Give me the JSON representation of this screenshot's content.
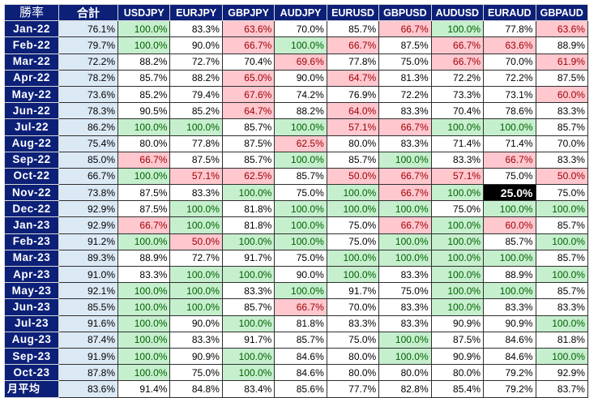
{
  "table": {
    "corner_label": "勝率",
    "total_label": "合計",
    "pairs": [
      "USDJPY",
      "EURJPY",
      "GBPJPY",
      "AUDJPY",
      "EURUSD",
      "GBPUSD",
      "AUDUSD",
      "EURAUD",
      "GBPAUD"
    ],
    "rows": [
      {
        "month": "Jan-22",
        "total": "76.1%",
        "values": [
          {
            "v": "100.0%",
            "s": "hi"
          },
          {
            "v": "83.3%",
            "s": ""
          },
          {
            "v": "63.6%",
            "s": "lo"
          },
          {
            "v": "70.0%",
            "s": ""
          },
          {
            "v": "85.7%",
            "s": ""
          },
          {
            "v": "66.7%",
            "s": "lo"
          },
          {
            "v": "100.0%",
            "s": "hi"
          },
          {
            "v": "77.8%",
            "s": ""
          },
          {
            "v": "63.6%",
            "s": "lo"
          }
        ]
      },
      {
        "month": "Feb-22",
        "total": "79.7%",
        "values": [
          {
            "v": "100.0%",
            "s": "hi"
          },
          {
            "v": "90.0%",
            "s": ""
          },
          {
            "v": "66.7%",
            "s": "lo"
          },
          {
            "v": "100.0%",
            "s": "hi"
          },
          {
            "v": "66.7%",
            "s": "lo"
          },
          {
            "v": "87.5%",
            "s": ""
          },
          {
            "v": "66.7%",
            "s": "lo"
          },
          {
            "v": "63.6%",
            "s": "lo"
          },
          {
            "v": "88.9%",
            "s": ""
          }
        ]
      },
      {
        "month": "Mar-22",
        "total": "72.2%",
        "values": [
          {
            "v": "88.2%",
            "s": ""
          },
          {
            "v": "72.7%",
            "s": ""
          },
          {
            "v": "70.4%",
            "s": ""
          },
          {
            "v": "69.6%",
            "s": "lo"
          },
          {
            "v": "77.8%",
            "s": ""
          },
          {
            "v": "75.0%",
            "s": ""
          },
          {
            "v": "66.7%",
            "s": "lo"
          },
          {
            "v": "70.0%",
            "s": ""
          },
          {
            "v": "61.9%",
            "s": "lo"
          }
        ]
      },
      {
        "month": "Apr-22",
        "total": "78.2%",
        "values": [
          {
            "v": "85.7%",
            "s": ""
          },
          {
            "v": "88.2%",
            "s": ""
          },
          {
            "v": "65.0%",
            "s": "lo"
          },
          {
            "v": "90.0%",
            "s": ""
          },
          {
            "v": "64.7%",
            "s": "lo"
          },
          {
            "v": "81.3%",
            "s": ""
          },
          {
            "v": "72.2%",
            "s": ""
          },
          {
            "v": "72.2%",
            "s": ""
          },
          {
            "v": "87.5%",
            "s": ""
          }
        ]
      },
      {
        "month": "May-22",
        "total": "73.6%",
        "values": [
          {
            "v": "85.2%",
            "s": ""
          },
          {
            "v": "79.4%",
            "s": ""
          },
          {
            "v": "67.6%",
            "s": "lo"
          },
          {
            "v": "74.2%",
            "s": ""
          },
          {
            "v": "76.9%",
            "s": ""
          },
          {
            "v": "72.2%",
            "s": ""
          },
          {
            "v": "73.3%",
            "s": ""
          },
          {
            "v": "73.1%",
            "s": ""
          },
          {
            "v": "60.0%",
            "s": "lo"
          }
        ]
      },
      {
        "month": "Jun-22",
        "total": "78.3%",
        "values": [
          {
            "v": "90.5%",
            "s": ""
          },
          {
            "v": "85.2%",
            "s": ""
          },
          {
            "v": "64.7%",
            "s": "lo"
          },
          {
            "v": "88.2%",
            "s": ""
          },
          {
            "v": "64.0%",
            "s": "lo"
          },
          {
            "v": "83.3%",
            "s": ""
          },
          {
            "v": "70.4%",
            "s": ""
          },
          {
            "v": "78.6%",
            "s": ""
          },
          {
            "v": "83.3%",
            "s": ""
          }
        ]
      },
      {
        "month": "Jul-22",
        "total": "86.2%",
        "values": [
          {
            "v": "100.0%",
            "s": "hi"
          },
          {
            "v": "100.0%",
            "s": "hi"
          },
          {
            "v": "85.7%",
            "s": ""
          },
          {
            "v": "100.0%",
            "s": "hi"
          },
          {
            "v": "57.1%",
            "s": "lo"
          },
          {
            "v": "66.7%",
            "s": "lo"
          },
          {
            "v": "100.0%",
            "s": "hi"
          },
          {
            "v": "100.0%",
            "s": "hi"
          },
          {
            "v": "85.7%",
            "s": ""
          }
        ]
      },
      {
        "month": "Aug-22",
        "total": "75.4%",
        "values": [
          {
            "v": "80.0%",
            "s": ""
          },
          {
            "v": "77.8%",
            "s": ""
          },
          {
            "v": "87.5%",
            "s": ""
          },
          {
            "v": "62.5%",
            "s": "lo"
          },
          {
            "v": "80.0%",
            "s": ""
          },
          {
            "v": "83.3%",
            "s": ""
          },
          {
            "v": "71.4%",
            "s": ""
          },
          {
            "v": "71.4%",
            "s": ""
          },
          {
            "v": "70.0%",
            "s": ""
          }
        ]
      },
      {
        "month": "Sep-22",
        "total": "85.0%",
        "values": [
          {
            "v": "66.7%",
            "s": "lo"
          },
          {
            "v": "87.5%",
            "s": ""
          },
          {
            "v": "85.7%",
            "s": ""
          },
          {
            "v": "100.0%",
            "s": "hi"
          },
          {
            "v": "85.7%",
            "s": ""
          },
          {
            "v": "100.0%",
            "s": "hi"
          },
          {
            "v": "83.3%",
            "s": ""
          },
          {
            "v": "66.7%",
            "s": "lo"
          },
          {
            "v": "83.3%",
            "s": ""
          }
        ]
      },
      {
        "month": "Oct-22",
        "total": "66.7%",
        "values": [
          {
            "v": "100.0%",
            "s": "hi"
          },
          {
            "v": "57.1%",
            "s": "lo"
          },
          {
            "v": "62.5%",
            "s": "lo"
          },
          {
            "v": "85.7%",
            "s": ""
          },
          {
            "v": "50.0%",
            "s": "lo"
          },
          {
            "v": "66.7%",
            "s": "lo"
          },
          {
            "v": "57.1%",
            "s": "lo"
          },
          {
            "v": "75.0%",
            "s": ""
          },
          {
            "v": "50.0%",
            "s": "lo"
          }
        ]
      },
      {
        "month": "Nov-22",
        "total": "73.8%",
        "values": [
          {
            "v": "87.5%",
            "s": ""
          },
          {
            "v": "83.3%",
            "s": ""
          },
          {
            "v": "100.0%",
            "s": "hi"
          },
          {
            "v": "75.0%",
            "s": ""
          },
          {
            "v": "100.0%",
            "s": "hi"
          },
          {
            "v": "66.7%",
            "s": "lo"
          },
          {
            "v": "100.0%",
            "s": "hi"
          },
          {
            "v": "25.0%",
            "s": "min"
          },
          {
            "v": "75.0%",
            "s": ""
          }
        ]
      },
      {
        "month": "Dec-22",
        "total": "92.9%",
        "values": [
          {
            "v": "87.5%",
            "s": ""
          },
          {
            "v": "100.0%",
            "s": "hi"
          },
          {
            "v": "81.8%",
            "s": ""
          },
          {
            "v": "100.0%",
            "s": "hi"
          },
          {
            "v": "100.0%",
            "s": "hi"
          },
          {
            "v": "100.0%",
            "s": "hi"
          },
          {
            "v": "75.0%",
            "s": ""
          },
          {
            "v": "100.0%",
            "s": "hi"
          },
          {
            "v": "100.0%",
            "s": "hi"
          }
        ]
      },
      {
        "month": "Jan-23",
        "total": "92.9%",
        "values": [
          {
            "v": "66.7%",
            "s": "lo"
          },
          {
            "v": "100.0%",
            "s": "hi"
          },
          {
            "v": "81.8%",
            "s": ""
          },
          {
            "v": "100.0%",
            "s": "hi"
          },
          {
            "v": "75.0%",
            "s": ""
          },
          {
            "v": "66.7%",
            "s": "lo"
          },
          {
            "v": "100.0%",
            "s": "hi"
          },
          {
            "v": "60.0%",
            "s": "lo"
          },
          {
            "v": "85.7%",
            "s": ""
          }
        ]
      },
      {
        "month": "Feb-23",
        "total": "91.2%",
        "values": [
          {
            "v": "100.0%",
            "s": "hi"
          },
          {
            "v": "50.0%",
            "s": "lo"
          },
          {
            "v": "100.0%",
            "s": "hi"
          },
          {
            "v": "100.0%",
            "s": "hi"
          },
          {
            "v": "75.0%",
            "s": ""
          },
          {
            "v": "100.0%",
            "s": "hi"
          },
          {
            "v": "100.0%",
            "s": "hi"
          },
          {
            "v": "85.7%",
            "s": ""
          },
          {
            "v": "100.0%",
            "s": "hi"
          }
        ]
      },
      {
        "month": "Mar-23",
        "total": "89.3%",
        "values": [
          {
            "v": "88.9%",
            "s": ""
          },
          {
            "v": "72.7%",
            "s": ""
          },
          {
            "v": "91.7%",
            "s": ""
          },
          {
            "v": "75.0%",
            "s": ""
          },
          {
            "v": "100.0%",
            "s": "hi"
          },
          {
            "v": "100.0%",
            "s": "hi"
          },
          {
            "v": "100.0%",
            "s": "hi"
          },
          {
            "v": "100.0%",
            "s": "hi"
          },
          {
            "v": "85.7%",
            "s": ""
          }
        ]
      },
      {
        "month": "Apr-23",
        "total": "91.0%",
        "values": [
          {
            "v": "83.3%",
            "s": ""
          },
          {
            "v": "100.0%",
            "s": "hi"
          },
          {
            "v": "100.0%",
            "s": "hi"
          },
          {
            "v": "90.0%",
            "s": ""
          },
          {
            "v": "100.0%",
            "s": "hi"
          },
          {
            "v": "83.3%",
            "s": ""
          },
          {
            "v": "100.0%",
            "s": "hi"
          },
          {
            "v": "88.9%",
            "s": ""
          },
          {
            "v": "100.0%",
            "s": "hi"
          }
        ]
      },
      {
        "month": "May-23",
        "total": "92.1%",
        "values": [
          {
            "v": "100.0%",
            "s": "hi"
          },
          {
            "v": "100.0%",
            "s": "hi"
          },
          {
            "v": "83.3%",
            "s": ""
          },
          {
            "v": "100.0%",
            "s": "hi"
          },
          {
            "v": "91.7%",
            "s": ""
          },
          {
            "v": "75.0%",
            "s": ""
          },
          {
            "v": "100.0%",
            "s": "hi"
          },
          {
            "v": "100.0%",
            "s": "hi"
          },
          {
            "v": "85.7%",
            "s": ""
          }
        ]
      },
      {
        "month": "Jun-23",
        "total": "85.5%",
        "values": [
          {
            "v": "100.0%",
            "s": "hi"
          },
          {
            "v": "100.0%",
            "s": "hi"
          },
          {
            "v": "85.7%",
            "s": ""
          },
          {
            "v": "66.7%",
            "s": "lo"
          },
          {
            "v": "70.0%",
            "s": ""
          },
          {
            "v": "83.3%",
            "s": ""
          },
          {
            "v": "100.0%",
            "s": "hi"
          },
          {
            "v": "83.3%",
            "s": ""
          },
          {
            "v": "83.3%",
            "s": ""
          }
        ]
      },
      {
        "month": "Jul-23",
        "total": "91.6%",
        "values": [
          {
            "v": "100.0%",
            "s": "hi"
          },
          {
            "v": "90.0%",
            "s": ""
          },
          {
            "v": "100.0%",
            "s": "hi"
          },
          {
            "v": "81.8%",
            "s": ""
          },
          {
            "v": "83.3%",
            "s": ""
          },
          {
            "v": "83.3%",
            "s": ""
          },
          {
            "v": "90.9%",
            "s": ""
          },
          {
            "v": "90.9%",
            "s": ""
          },
          {
            "v": "100.0%",
            "s": "hi"
          }
        ]
      },
      {
        "month": "Aug-23",
        "total": "87.4%",
        "values": [
          {
            "v": "100.0%",
            "s": "hi"
          },
          {
            "v": "83.3%",
            "s": ""
          },
          {
            "v": "91.7%",
            "s": ""
          },
          {
            "v": "85.7%",
            "s": ""
          },
          {
            "v": "75.0%",
            "s": ""
          },
          {
            "v": "100.0%",
            "s": "hi"
          },
          {
            "v": "87.5%",
            "s": ""
          },
          {
            "v": "84.6%",
            "s": ""
          },
          {
            "v": "81.8%",
            "s": ""
          }
        ]
      },
      {
        "month": "Sep-23",
        "total": "91.9%",
        "values": [
          {
            "v": "100.0%",
            "s": "hi"
          },
          {
            "v": "90.9%",
            "s": ""
          },
          {
            "v": "100.0%",
            "s": "hi"
          },
          {
            "v": "84.6%",
            "s": ""
          },
          {
            "v": "80.0%",
            "s": ""
          },
          {
            "v": "100.0%",
            "s": "hi"
          },
          {
            "v": "90.9%",
            "s": ""
          },
          {
            "v": "84.6%",
            "s": ""
          },
          {
            "v": "100.0%",
            "s": "hi"
          }
        ]
      },
      {
        "month": "Oct-23",
        "total": "87.8%",
        "values": [
          {
            "v": "100.0%",
            "s": "hi"
          },
          {
            "v": "75.0%",
            "s": ""
          },
          {
            "v": "100.0%",
            "s": "hi"
          },
          {
            "v": "84.6%",
            "s": ""
          },
          {
            "v": "80.0%",
            "s": ""
          },
          {
            "v": "80.0%",
            "s": ""
          },
          {
            "v": "80.0%",
            "s": ""
          },
          {
            "v": "79.2%",
            "s": ""
          },
          {
            "v": "92.9%",
            "s": ""
          }
        ]
      }
    ],
    "footer": {
      "label": "月平均",
      "total": "83.6%",
      "values": [
        "91.4%",
        "84.8%",
        "83.4%",
        "85.6%",
        "77.7%",
        "82.8%",
        "85.4%",
        "79.2%",
        "83.7%"
      ]
    },
    "colors": {
      "header_bg": "#0c2078",
      "total_bg": "#dbe9f5",
      "high_bg": "#c6efce",
      "high_text": "#006100",
      "low_bg": "#ffc7ce",
      "low_text": "#9c0006",
      "min_bg": "#000000"
    }
  }
}
